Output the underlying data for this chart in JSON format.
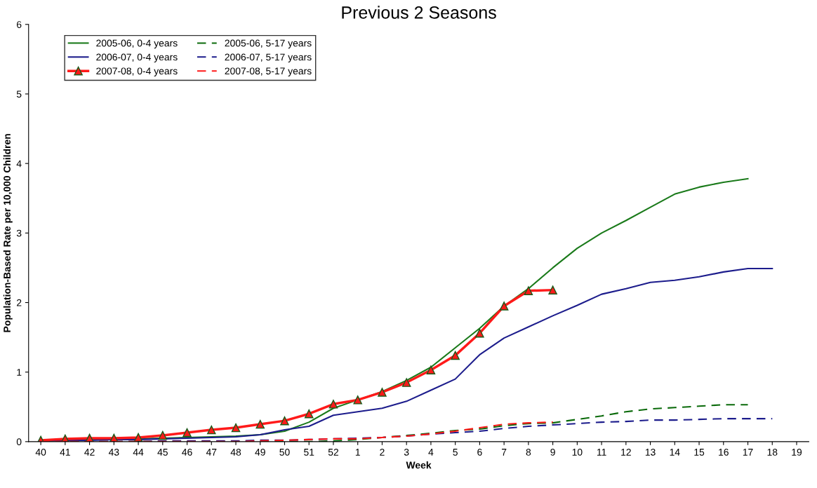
{
  "chart_data": {
    "type": "line",
    "title": "Previous 2 Seasons",
    "xlabel": "Week",
    "ylabel": "Population-Based Rate per 10,000 Children",
    "categories": [
      "40",
      "41",
      "42",
      "43",
      "44",
      "45",
      "46",
      "47",
      "48",
      "49",
      "50",
      "51",
      "52",
      "1",
      "2",
      "3",
      "4",
      "5",
      "6",
      "7",
      "8",
      "9",
      "10",
      "11",
      "12",
      "13",
      "14",
      "15",
      "16",
      "17",
      "18",
      "19"
    ],
    "series": [
      {
        "name": "2005-06, 0-4 years",
        "color": "#1a7a1a",
        "line_style": "solid",
        "marker": "none",
        "values": [
          0.01,
          0.02,
          0.03,
          0.03,
          0.04,
          0.05,
          0.06,
          0.07,
          0.08,
          0.1,
          0.15,
          0.28,
          0.48,
          0.6,
          0.72,
          0.88,
          1.07,
          1.35,
          1.63,
          1.95,
          2.2,
          2.5,
          2.78,
          3.0,
          3.18,
          3.37,
          3.56,
          3.66,
          3.73,
          3.78,
          null,
          null
        ]
      },
      {
        "name": "2005-06, 5-17 years",
        "color": "#0a6a0a",
        "line_style": "dashed",
        "marker": "none",
        "values": [
          0,
          0,
          0,
          0,
          0,
          0,
          0,
          0,
          0,
          0,
          0,
          0,
          0.01,
          0.03,
          0.06,
          0.09,
          0.12,
          0.16,
          0.18,
          0.23,
          0.26,
          0.27,
          0.32,
          0.37,
          0.43,
          0.47,
          0.49,
          0.51,
          0.53,
          0.53,
          null,
          null
        ]
      },
      {
        "name": "2006-07, 0-4 years",
        "color": "#1c1c8c",
        "line_style": "solid",
        "marker": "none",
        "values": [
          0.01,
          0.02,
          0.02,
          0.03,
          0.03,
          0.04,
          0.05,
          0.06,
          0.07,
          0.1,
          0.17,
          0.22,
          0.38,
          0.43,
          0.48,
          0.58,
          0.74,
          0.9,
          1.25,
          1.49,
          1.65,
          1.81,
          1.96,
          2.12,
          2.2,
          2.29,
          2.32,
          2.37,
          2.44,
          2.49,
          2.49,
          null
        ]
      },
      {
        "name": "2006-07, 5-17 years",
        "color": "#1c1c8c",
        "line_style": "dashed",
        "marker": "none",
        "values": [
          0,
          0,
          0,
          0,
          0,
          0.01,
          0.01,
          0.01,
          0.01,
          0.02,
          0.02,
          0.03,
          0.04,
          0.05,
          0.06,
          0.08,
          0.11,
          0.13,
          0.15,
          0.19,
          0.22,
          0.24,
          0.26,
          0.28,
          0.29,
          0.31,
          0.31,
          0.32,
          0.33,
          0.33,
          0.33,
          null
        ]
      },
      {
        "name": "2007-08, 0-4 years",
        "color": "#ff1a1a",
        "line_style": "solid",
        "marker": "triangle",
        "values": [
          0.02,
          0.04,
          0.05,
          0.05,
          0.06,
          0.09,
          0.13,
          0.17,
          0.2,
          0.25,
          0.3,
          0.4,
          0.54,
          0.6,
          0.71,
          0.85,
          1.03,
          1.24,
          1.56,
          1.95,
          2.17,
          2.18,
          null,
          null,
          null,
          null,
          null,
          null,
          null,
          null,
          null,
          null
        ]
      },
      {
        "name": "2007-08, 5-17 years",
        "color": "#ff1a1a",
        "line_style": "dashed",
        "marker": "none",
        "values": [
          0,
          0,
          0,
          0,
          0,
          0,
          0,
          0,
          0,
          0.01,
          0.02,
          0.03,
          0.04,
          0.04,
          0.06,
          0.08,
          0.11,
          0.15,
          0.2,
          0.25,
          0.27,
          0.28,
          null,
          null,
          null,
          null,
          null,
          null,
          null,
          null,
          null,
          null
        ]
      }
    ],
    "ylim": [
      0,
      6
    ],
    "yticks": [
      0,
      1,
      2,
      3,
      4,
      5,
      6
    ],
    "grid": false,
    "legend": "top left"
  }
}
